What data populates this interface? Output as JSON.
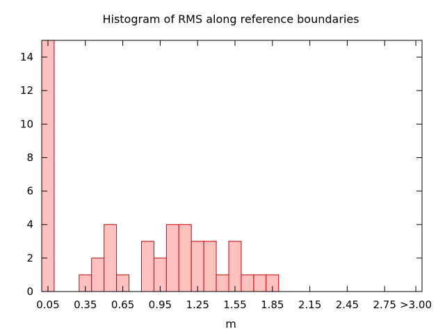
{
  "chart_data": {
    "type": "bar",
    "title": "Histogram of RMS along reference boundaries",
    "xlabel": "m",
    "ylabel": "",
    "bin_width": 0.1,
    "xlim": [
      0.0,
      3.05
    ],
    "ylim": [
      0,
      15
    ],
    "yticks": [
      0,
      2,
      4,
      6,
      8,
      10,
      12,
      14
    ],
    "xticks": [
      {
        "value": 0.05,
        "label": "0.05"
      },
      {
        "value": 0.35,
        "label": "0.35"
      },
      {
        "value": 0.65,
        "label": "0.65"
      },
      {
        "value": 0.95,
        "label": "0.95"
      },
      {
        "value": 1.25,
        "label": "1.25"
      },
      {
        "value": 1.55,
        "label": "1.55"
      },
      {
        "value": 1.85,
        "label": "1.85"
      },
      {
        "value": 2.15,
        "label": "2.15"
      },
      {
        "value": 2.45,
        "label": "2.45"
      },
      {
        "value": 2.75,
        "label": "2.75"
      },
      {
        "value": 3.0,
        "label": ">3.00"
      }
    ],
    "bars": [
      {
        "x": 0.05,
        "value": 15
      },
      {
        "x": 0.35,
        "value": 1
      },
      {
        "x": 0.45,
        "value": 2
      },
      {
        "x": 0.55,
        "value": 4
      },
      {
        "x": 0.65,
        "value": 1
      },
      {
        "x": 0.85,
        "value": 3
      },
      {
        "x": 0.95,
        "value": 2
      },
      {
        "x": 1.05,
        "value": 4
      },
      {
        "x": 1.15,
        "value": 4
      },
      {
        "x": 1.25,
        "value": 3
      },
      {
        "x": 1.35,
        "value": 3
      },
      {
        "x": 1.45,
        "value": 1
      },
      {
        "x": 1.55,
        "value": 3
      },
      {
        "x": 1.65,
        "value": 1
      },
      {
        "x": 1.75,
        "value": 1
      },
      {
        "x": 1.85,
        "value": 1
      }
    ],
    "grid": false,
    "colors": {
      "bar_fill": "#ffc0c0",
      "bar_stroke": "#cc0000",
      "axis": "#000000"
    }
  }
}
